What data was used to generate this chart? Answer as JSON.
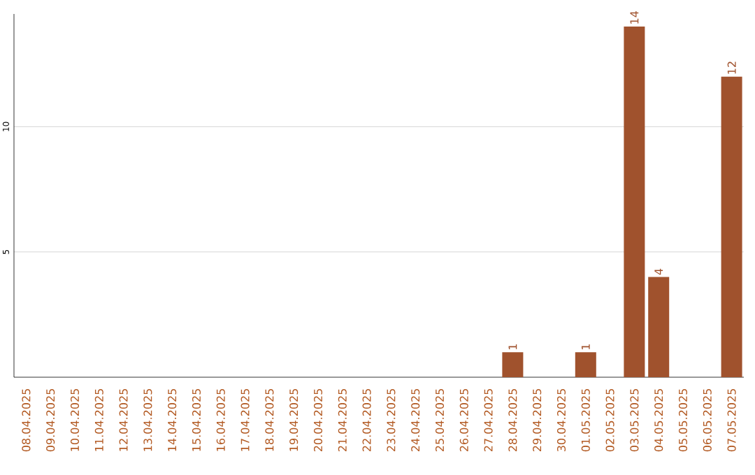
{
  "chart_data": {
    "type": "bar",
    "categories": [
      "08.04.2025",
      "09.04.2025",
      "10.04.2025",
      "11.04.2025",
      "12.04.2025",
      "13.04.2025",
      "14.04.2025",
      "15.04.2025",
      "16.04.2025",
      "17.04.2025",
      "18.04.2025",
      "19.04.2025",
      "20.04.2025",
      "21.04.2025",
      "22.04.2025",
      "23.04.2025",
      "24.04.2025",
      "25.04.2025",
      "26.04.2025",
      "27.04.2025",
      "28.04.2025",
      "29.04.2025",
      "30.04.2025",
      "01.05.2025",
      "02.05.2025",
      "03.05.2025",
      "04.05.2025",
      "05.05.2025",
      "06.05.2025",
      "07.05.2025"
    ],
    "values": [
      0,
      0,
      0,
      0,
      0,
      0,
      0,
      0,
      0,
      0,
      0,
      0,
      0,
      0,
      0,
      0,
      0,
      0,
      0,
      0,
      1,
      0,
      0,
      1,
      0,
      14,
      4,
      0,
      0,
      12
    ],
    "value_labels": [
      null,
      null,
      null,
      null,
      null,
      null,
      null,
      null,
      null,
      null,
      null,
      null,
      null,
      null,
      null,
      null,
      null,
      null,
      null,
      null,
      "1",
      null,
      null,
      "1",
      null,
      "14",
      "4",
      null,
      null,
      "12"
    ],
    "color": "#a0522d",
    "ylim": [
      0,
      14.5
    ],
    "yticks": [
      5,
      10
    ],
    "grid": "y"
  }
}
